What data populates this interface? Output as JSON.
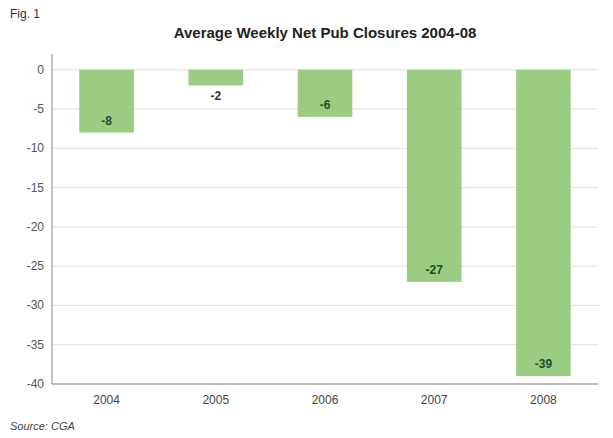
{
  "chart_data": {
    "type": "bar",
    "title": "Average Weekly Net Pub Closures 2004-08",
    "annotations": [
      "Fig. 1",
      "Source: CGA"
    ],
    "categories": [
      "2004",
      "2005",
      "2006",
      "2007",
      "2008"
    ],
    "values": [
      -8,
      -2,
      -6,
      -27,
      -39
    ],
    "color": "#9ACD82",
    "ylim": [
      -40,
      2
    ],
    "yticks": [
      0,
      -5,
      -10,
      -15,
      -20,
      -25,
      -30,
      -35,
      -40
    ],
    "grid": true,
    "data_labels": true
  }
}
